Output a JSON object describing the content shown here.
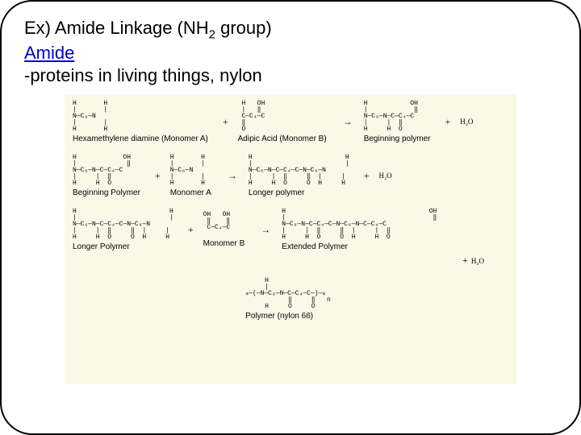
{
  "header": {
    "line1_prefix": "Ex) Amide Linkage (NH",
    "line1_sub": "2",
    "line1_suffix": " group)",
    "link": "Amide",
    "desc": "-proteins in living things, nylon"
  },
  "diagram": {
    "background_color": "#f9f9e8",
    "text_color": "#000000",
    "font_size_label": 10,
    "font_size_formula": 9,
    "row1": {
      "monomerA_chain_top": "H       H",
      "monomerA_chain_mid": "|       |",
      "monomerA_chain_main": "N—C₆—N",
      "monomerA_chain_mid2": "|       |",
      "monomerA_chain_bot": "H       H",
      "monomerA_label": "Hexamethylene diamine (Monomer A)",
      "plus1": "+",
      "monomerB_chain_top": " H   OH",
      "monomerB_chain_mid": " |   ‖ ",
      "monomerB_chain_main": " C—C₄—C",
      "monomerB_chain_mid2": " ‖      ",
      "monomerB_chain_bot": " O      ",
      "monomerB_label": "Adipic Acid (Monomer B)",
      "arrow1": "→",
      "product_chain_top": "H           OH",
      "product_chain_mid": "|            ‖",
      "product_chain_main": "N—C₆—N—C—C₄—C",
      "product_chain_mid2": "|     |  ‖    ",
      "product_chain_bot": "H     H  O    ",
      "product_label": "Beginning polymer",
      "plus2": "+",
      "water1": "H₂O"
    },
    "row2": {
      "begpoly_chain_top": "H            OH",
      "begpoly_chain_mid": "|             ‖",
      "begpoly_chain_main": "N—C₆—N—C—C₄—C ",
      "begpoly_chain_mid2": "|     |  ‖     ",
      "begpoly_chain_bot": "H     H  O     ",
      "begpoly_label": "Beginning Polymer",
      "plus1": "+",
      "monA2_chain_top": "H       H",
      "monA2_chain_mid": "|       |",
      "monA2_chain_main": "N—C₆—N",
      "monA2_chain_mid2": "|       |",
      "monA2_chain_bot": "H       H",
      "monA2_label": "Monomer A",
      "arrow2": "→",
      "longer_chain_top": "H                        H",
      "longer_chain_mid": "|                        |",
      "longer_chain_main": "N—C₆—N—C—C₄—C—N—C₆—N",
      "longer_chain_mid2": "|     |  ‖     ‖  |     |",
      "longer_chain_bot": "H     H  O     O  H     H",
      "longer_label": "Longer polymer",
      "plus2": "+",
      "water2": "H₂O"
    },
    "row3": {
      "longer2_chain_top": "H                        H",
      "longer2_chain_mid": "|                        |",
      "longer2_chain_main": "N—C₆—N—C—C₄—C—N—C₆—N",
      "longer2_chain_mid2": "|     |  ‖     ‖  |     |",
      "longer2_chain_bot": "H     H  O     O  H     H",
      "longer2_label": "Longer Polymer",
      "plus1": "+",
      "monB2_chain_top": "OH   OH",
      "monB2_chain_mid": " ‖    ‖",
      "monB2_chain_main": " C—C₄—C",
      "monB2_chain_bot": "        ",
      "monB2_label": "Monomer B",
      "arrow3": "→",
      "ext_chain_top": "H                                     OH",
      "ext_chain_mid": "|                                      ‖",
      "ext_chain_main": "N—C₆—N—C—C₄—C—N—C₆—N—C—C₄—C",
      "ext_chain_mid2": "|     |  ‖     ‖  |     |  ‖      ",
      "ext_chain_bot": "H     H  O     O  H     H  O      ",
      "ext_label": "Extended Polymer",
      "plus2": "+",
      "water3": "H₂O"
    },
    "row4": {
      "repeat_chain_top": "     H        ",
      "repeat_chain_mid": "     |        ",
      "repeat_chain_main": "⁎—(—N—C₆—N—C—C₄—C—)—⁎",
      "repeat_chain_mid2": "           ‖     ‖   n",
      "repeat_chain_bot": "     H     O     O    ",
      "repeat_label": "Polymer (nylon 66)"
    }
  }
}
